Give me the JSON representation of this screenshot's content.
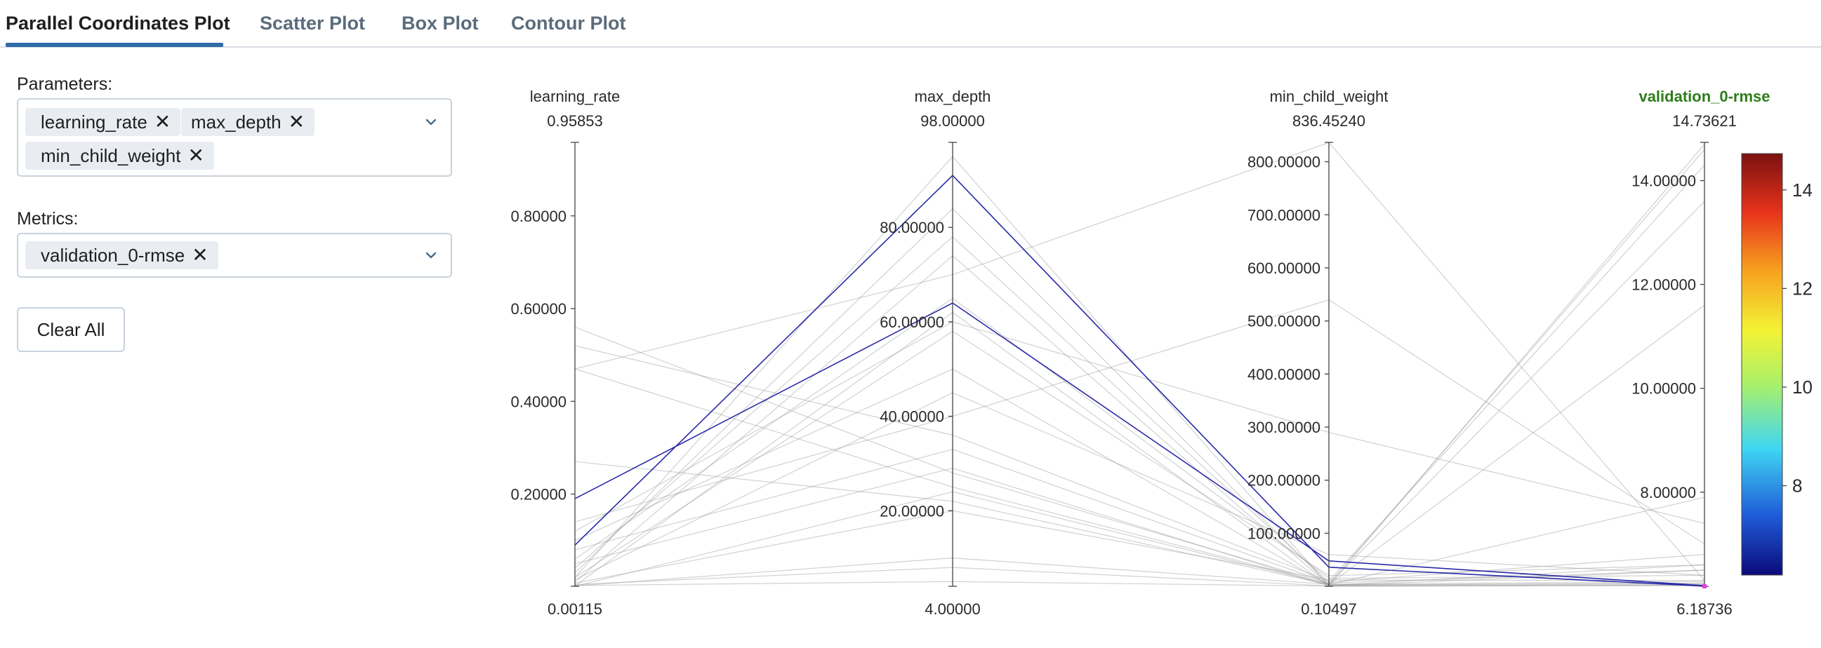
{
  "tabs": [
    {
      "label": "Parallel Coordinates Plot",
      "active": true
    },
    {
      "label": "Scatter Plot",
      "active": false
    },
    {
      "label": "Box Plot",
      "active": false
    },
    {
      "label": "Contour Plot",
      "active": false
    }
  ],
  "parameters": {
    "label": "Parameters:",
    "selected": [
      "learning_rate",
      "max_depth",
      "min_child_weight"
    ]
  },
  "metrics": {
    "label": "Metrics:",
    "selected": [
      "validation_0-rmse"
    ]
  },
  "clear_all_label": "Clear All",
  "chart_data": {
    "type": "parallel_coordinates",
    "axes": [
      {
        "name": "learning_rate",
        "max_label": "0.95853",
        "min_label": "0.00115",
        "min": 0.00115,
        "max": 0.95853,
        "ticks": [
          {
            "v": 0.2,
            "label": "0.20000"
          },
          {
            "v": 0.4,
            "label": "0.40000"
          },
          {
            "v": 0.6,
            "label": "0.60000"
          },
          {
            "v": 0.8,
            "label": "0.80000"
          }
        ]
      },
      {
        "name": "max_depth",
        "max_label": "98.00000",
        "min_label": "4.00000",
        "min": 4,
        "max": 98,
        "ticks": [
          {
            "v": 20,
            "label": "20.00000"
          },
          {
            "v": 40,
            "label": "40.00000"
          },
          {
            "v": 60,
            "label": "60.00000"
          },
          {
            "v": 80,
            "label": "80.00000"
          }
        ]
      },
      {
        "name": "min_child_weight",
        "max_label": "836.45240",
        "min_label": "0.10497",
        "min": 0.10497,
        "max": 836.4524,
        "ticks": [
          {
            "v": 100,
            "label": "100.00000"
          },
          {
            "v": 200,
            "label": "200.00000"
          },
          {
            "v": 300,
            "label": "300.00000"
          },
          {
            "v": 400,
            "label": "400.00000"
          },
          {
            "v": 500,
            "label": "500.00000"
          },
          {
            "v": 600,
            "label": "600.00000"
          },
          {
            "v": 700,
            "label": "700.00000"
          },
          {
            "v": 800,
            "label": "800.00000"
          }
        ]
      },
      {
        "name": "validation_0-rmse",
        "max_label": "14.73621",
        "min_label": "6.18736",
        "min": 6.18736,
        "max": 14.73621,
        "highlighted": true,
        "ticks": [
          {
            "v": 8,
            "label": "8.00000"
          },
          {
            "v": 10,
            "label": "10.00000"
          },
          {
            "v": 12,
            "label": "12.00000"
          },
          {
            "v": 14,
            "label": "14.00000"
          }
        ]
      }
    ],
    "colorbar": {
      "min": 6.18736,
      "max": 14.73621,
      "ticks": [
        {
          "v": 8,
          "label": "8"
        },
        {
          "v": 10,
          "label": "10"
        },
        {
          "v": 12,
          "label": "12"
        },
        {
          "v": 14,
          "label": "14"
        }
      ],
      "colors": [
        "#0b0a7a",
        "#1f5bd8",
        "#3fd6f3",
        "#a8f06a",
        "#f3f335",
        "#f7a31f",
        "#e8331c",
        "#7a1111"
      ]
    },
    "highlight_color": "#2a2aa8",
    "trials": [
      {
        "values": [
          0.19,
          64,
          48,
          6.2
        ],
        "highlight": true
      },
      {
        "values": [
          0.09,
          91,
          36,
          6.19
        ],
        "highlight": true
      },
      {
        "values": [
          0.56,
          28,
          5,
          14.6
        ]
      },
      {
        "values": [
          0.52,
          36,
          10,
          14.3
        ]
      },
      {
        "values": [
          0.47,
          25,
          4,
          13.6
        ]
      },
      {
        "values": [
          0.47,
          70,
          836,
          6.3
        ]
      },
      {
        "values": [
          0.27,
          22,
          3,
          11.6
        ]
      },
      {
        "values": [
          0.14,
          40,
          540,
          7.0
        ]
      },
      {
        "values": [
          0.12,
          60,
          290,
          7.4
        ]
      },
      {
        "values": [
          0.1,
          50,
          2,
          6.6
        ]
      },
      {
        "values": [
          0.08,
          33,
          6,
          6.5
        ]
      },
      {
        "values": [
          0.06,
          65,
          15,
          6.4
        ]
      },
      {
        "values": [
          0.05,
          29,
          1,
          6.5
        ]
      },
      {
        "values": [
          0.04,
          78,
          8,
          6.8
        ]
      },
      {
        "values": [
          0.03,
          84,
          3,
          7.9
        ]
      },
      {
        "values": [
          0.02,
          95,
          1,
          14.7
        ]
      },
      {
        "values": [
          0.02,
          58,
          20,
          6.6
        ]
      },
      {
        "values": [
          0.015,
          45,
          60,
          6.4
        ]
      },
      {
        "values": [
          0.01,
          74,
          2,
          6.25
        ]
      },
      {
        "values": [
          0.008,
          20,
          12,
          6.3
        ]
      },
      {
        "values": [
          0.005,
          8,
          1,
          6.22
        ]
      },
      {
        "values": [
          0.003,
          5,
          0.5,
          6.2
        ]
      },
      {
        "values": [
          0.002,
          10,
          4,
          6.28
        ]
      },
      {
        "values": [
          0.002,
          62,
          0.2,
          6.21
        ]
      },
      {
        "values": [
          0.001,
          24,
          3,
          6.24
        ]
      }
    ]
  }
}
